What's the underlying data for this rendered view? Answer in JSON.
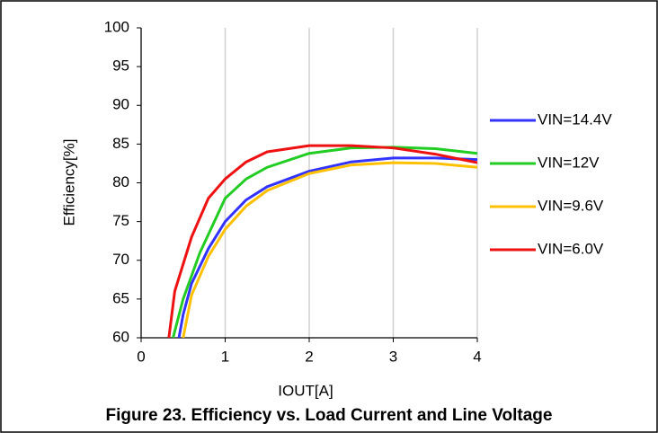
{
  "chart_data": {
    "type": "line",
    "caption": "Figure 23. Efficiency vs. Load Current and Line Voltage",
    "x_label": "IOUT[A]",
    "y_label": "Efficiency[%]",
    "xlim": [
      0,
      4
    ],
    "xticks": [
      0,
      1,
      2,
      3,
      4
    ],
    "ylim": [
      60,
      100
    ],
    "yticks": [
      60,
      65,
      70,
      75,
      80,
      85,
      90,
      95,
      100
    ],
    "xgrid": true,
    "legend": "right",
    "series": [
      {
        "name": "VIN=14.4V",
        "color": "#3333ff",
        "x": [
          0.45,
          0.5,
          0.6,
          0.8,
          1.0,
          1.25,
          1.5,
          2.0,
          2.5,
          3.0,
          3.5,
          4.0
        ],
        "values": [
          60,
          63,
          67,
          71.5,
          75,
          77.8,
          79.5,
          81.5,
          82.7,
          83.2,
          83.2,
          83.0
        ]
      },
      {
        "name": "VIN=12V",
        "color": "#22cc22",
        "x": [
          0.38,
          0.5,
          0.7,
          1.0,
          1.25,
          1.5,
          2.0,
          2.5,
          3.0,
          3.5,
          4.0
        ],
        "values": [
          60,
          65,
          71,
          78,
          80.5,
          82,
          83.8,
          84.5,
          84.6,
          84.4,
          83.8
        ]
      },
      {
        "name": "VIN=9.6V",
        "color": "#ffc000",
        "x": [
          0.5,
          0.6,
          0.8,
          1.0,
          1.25,
          1.5,
          2.0,
          2.5,
          3.0,
          3.5,
          4.0
        ],
        "values": [
          60,
          65.5,
          70.5,
          74,
          77,
          79,
          81.2,
          82.3,
          82.6,
          82.5,
          82.0
        ]
      },
      {
        "name": "VIN=6.0V",
        "color": "#ee1111",
        "x": [
          0.33,
          0.4,
          0.6,
          0.8,
          1.0,
          1.25,
          1.5,
          2.0,
          2.5,
          3.0,
          3.5,
          4.0
        ],
        "values": [
          60,
          66,
          73,
          78,
          80.5,
          82.7,
          84,
          84.8,
          84.8,
          84.5,
          83.7,
          82.6
        ]
      }
    ]
  }
}
